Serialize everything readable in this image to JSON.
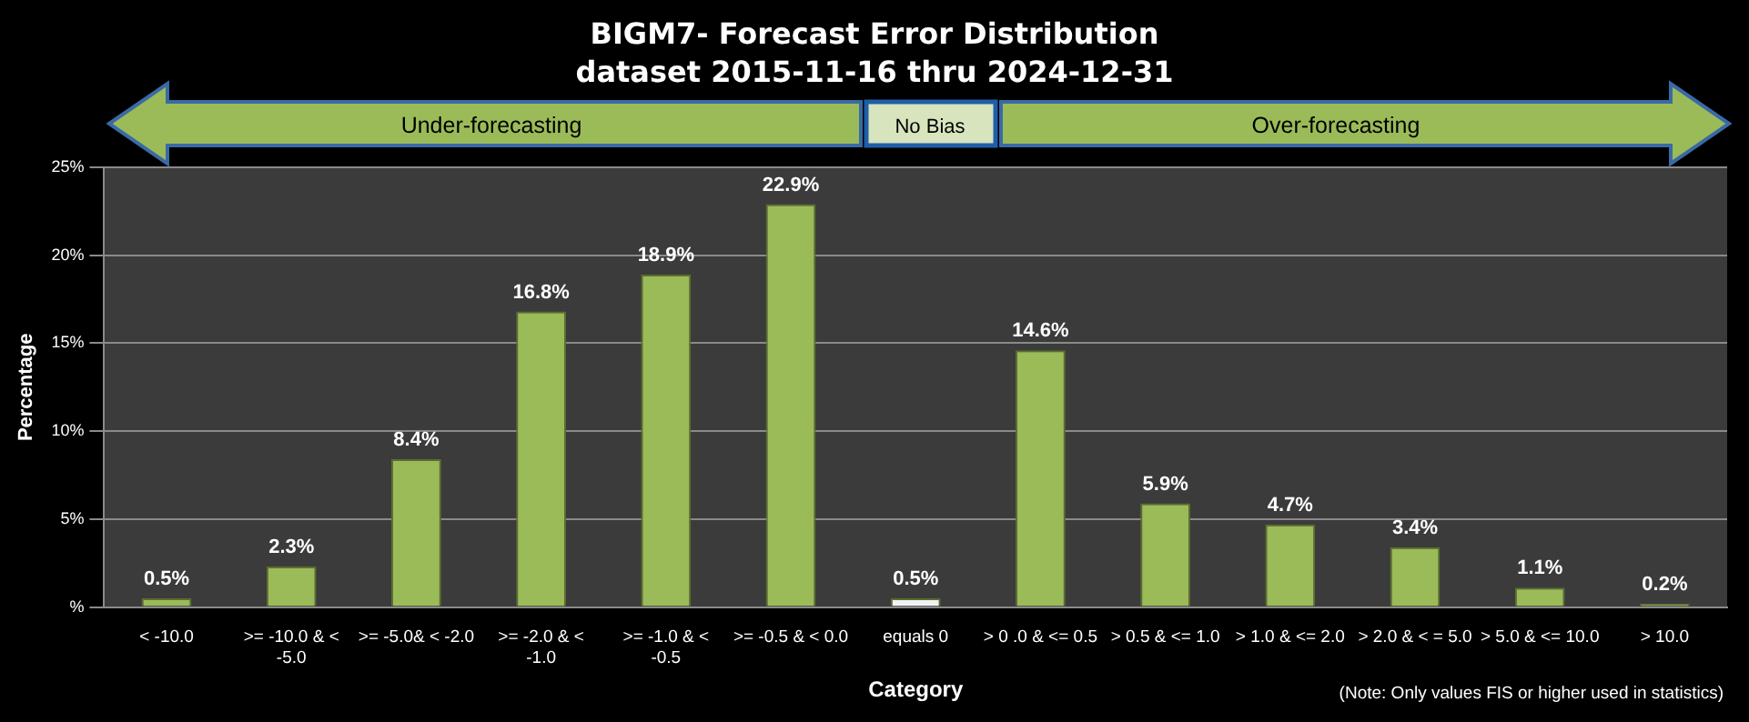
{
  "chart_data": {
    "type": "bar",
    "title": "BIGM7- Forecast Error Distribution",
    "subtitle": "dataset 2015-11-16  thru 2024-12-31",
    "xlabel": "Category",
    "ylabel": "Percentage",
    "categories": [
      "< -10.0",
      ">= -10.0 & < -5.0",
      ">= -5.0& < -2.0",
      ">= -2.0 & < -1.0",
      ">= -1.0 & < -0.5",
      ">= -0.5 & < 0.0",
      "equals 0",
      "> 0 .0 & <= 0.5",
      "> 0.5 & <= 1.0",
      "> 1.0 & <= 2.0",
      "> 2.0 & < = 5.0",
      "> 5.0 & <= 10.0",
      "> 10.0"
    ],
    "values": [
      0.5,
      2.3,
      8.4,
      16.8,
      18.9,
      22.9,
      0.5,
      14.6,
      5.9,
      4.7,
      3.4,
      1.1,
      0.2
    ],
    "value_labels": [
      "0.5%",
      "2.3%",
      "8.4%",
      "16.8%",
      "18.9%",
      "22.9%",
      "0.5%",
      "14.6%",
      "5.9%",
      "4.7%",
      "3.4%",
      "1.1%",
      "0.2%"
    ],
    "colors": [
      "#9bbb59",
      "#9bbb59",
      "#9bbb59",
      "#9bbb59",
      "#9bbb59",
      "#9bbb59",
      "#f2f2f2",
      "#9bbb59",
      "#9bbb59",
      "#9bbb59",
      "#9bbb59",
      "#9bbb59",
      "#9bbb59"
    ],
    "ylim": [
      0,
      25
    ],
    "yticks": [
      {
        "value": 0,
        "label": "%"
      },
      {
        "value": 5,
        "label": "5%"
      },
      {
        "value": 10,
        "label": "10%"
      },
      {
        "value": 15,
        "label": "15%"
      },
      {
        "value": 20,
        "label": "20%"
      },
      {
        "value": 25,
        "label": "25%"
      }
    ],
    "grid": "y",
    "legend": false,
    "annotations": [
      "Under-forecasting",
      "No Bias",
      "Over-forecasting",
      "(Note: Only values FIS or higher used in statistics)"
    ]
  }
}
